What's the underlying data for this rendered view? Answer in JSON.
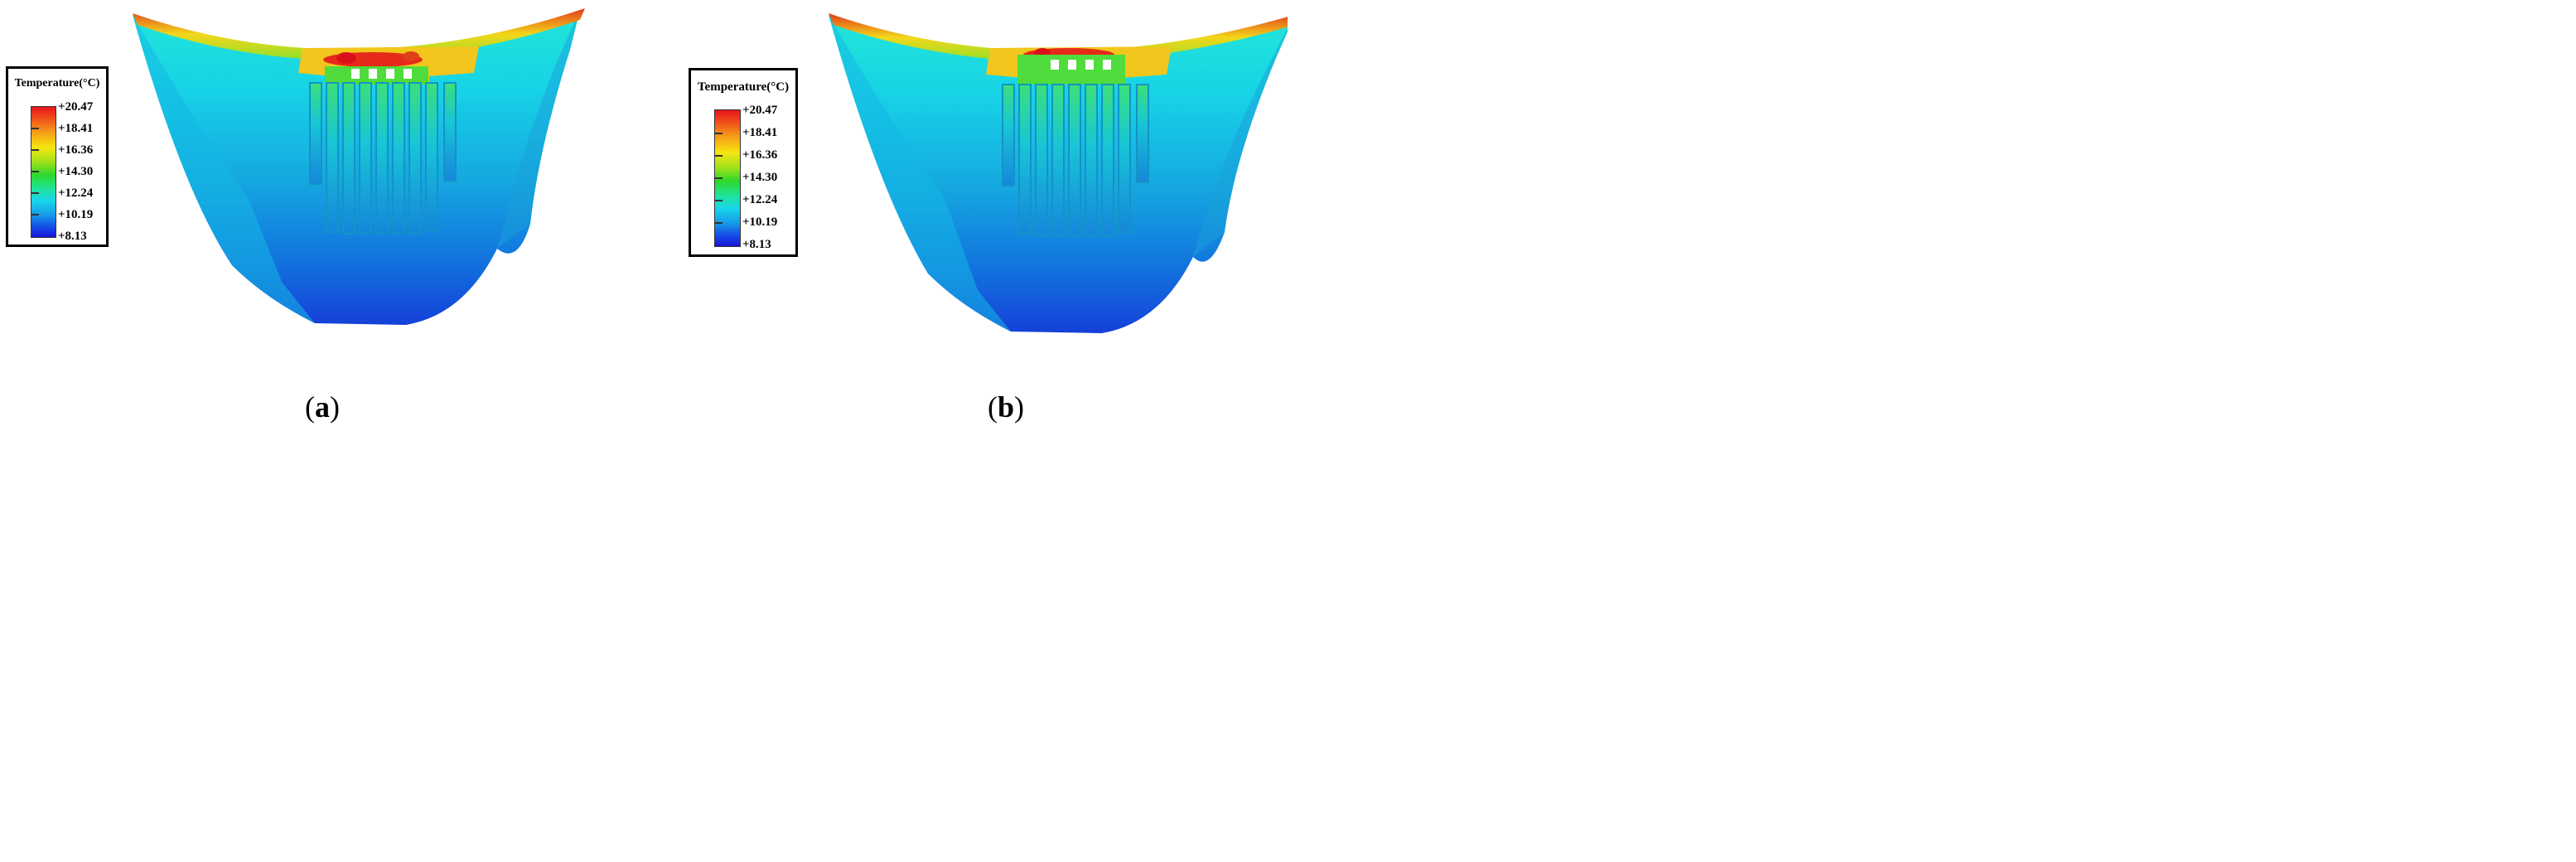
{
  "panels": [
    {
      "id": "a",
      "caption": {
        "open": "(",
        "letter": "a",
        "close": ")"
      },
      "legend": {
        "title": "Temperature(°C)",
        "ticks": [
          "+20.47",
          "+18.41",
          "+16.36",
          "+14.30",
          "+12.24",
          "+10.19",
          "+8.13"
        ]
      }
    },
    {
      "id": "b",
      "caption": {
        "open": "(",
        "letter": "b",
        "close": ")"
      },
      "legend": {
        "title": "Temperature(°C)",
        "ticks": [
          "+20.47",
          "+18.41",
          "+16.36",
          "+14.30",
          "+12.24",
          "+10.19",
          "+8.13"
        ]
      }
    }
  ],
  "colors": {
    "hot": "#e8141b",
    "warm": "#f6e60f",
    "mid": "#2ed82b",
    "cool": "#18d7ea",
    "cold": "#1616d8"
  }
}
